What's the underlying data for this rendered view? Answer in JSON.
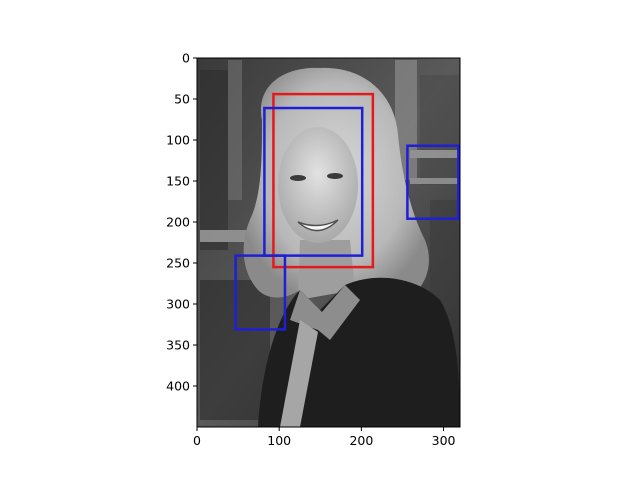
{
  "chart_data": {
    "type": "image",
    "title": "",
    "xlabel": "",
    "ylabel": "",
    "image_description": "grayscale photo of a smiling woman with shoulder-length blond hair wearing a dark jacket, blurred bookshelf background",
    "image_size": {
      "width": 320,
      "height": 450
    },
    "xlim": [
      0,
      320
    ],
    "ylim": [
      450,
      0
    ],
    "x_ticks": [
      0,
      100,
      200,
      300
    ],
    "y_ticks": [
      0,
      50,
      100,
      150,
      200,
      250,
      300,
      350,
      400
    ],
    "grid": false,
    "legend": "none",
    "boxes": [
      {
        "color": "#e31a1c",
        "x0": 93,
        "y0": 44,
        "x1": 214,
        "y1": 255
      },
      {
        "color": "#1f1fd6",
        "x0": 82,
        "y0": 61,
        "x1": 201,
        "y1": 241
      },
      {
        "color": "#1f1fd6",
        "x0": 256,
        "y0": 107,
        "x1": 318,
        "y1": 196
      },
      {
        "color": "#1f1fd6",
        "x0": 47,
        "y0": 241,
        "x1": 107,
        "y1": 331
      }
    ]
  }
}
